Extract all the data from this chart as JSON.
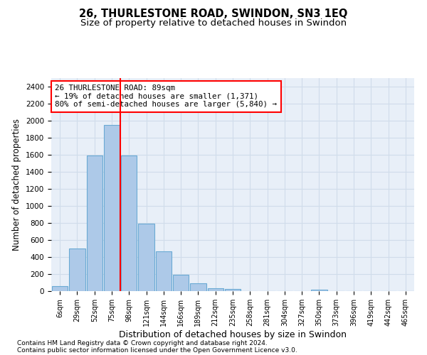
{
  "title": "26, THURLESTONE ROAD, SWINDON, SN3 1EQ",
  "subtitle": "Size of property relative to detached houses in Swindon",
  "xlabel": "Distribution of detached houses by size in Swindon",
  "ylabel": "Number of detached properties",
  "categories": [
    "6sqm",
    "29sqm",
    "52sqm",
    "75sqm",
    "98sqm",
    "121sqm",
    "144sqm",
    "166sqm",
    "189sqm",
    "212sqm",
    "235sqm",
    "258sqm",
    "281sqm",
    "304sqm",
    "327sqm",
    "350sqm",
    "373sqm",
    "396sqm",
    "419sqm",
    "442sqm",
    "465sqm"
  ],
  "values": [
    55,
    500,
    1590,
    1950,
    1590,
    790,
    470,
    195,
    90,
    35,
    25,
    0,
    0,
    0,
    0,
    20,
    0,
    0,
    0,
    0,
    0
  ],
  "bar_color": "#adc9e8",
  "bar_edge_color": "#6aaad4",
  "grid_color": "#d0dcea",
  "background_color": "#e8eff8",
  "annotation_line1": "26 THURLESTONE ROAD: 89sqm",
  "annotation_line2": "← 19% of detached houses are smaller (1,371)",
  "annotation_line3": "80% of semi-detached houses are larger (5,840) →",
  "red_line_index": 3.5,
  "ylim": [
    0,
    2500
  ],
  "yticks": [
    0,
    200,
    400,
    600,
    800,
    1000,
    1200,
    1400,
    1600,
    1800,
    2000,
    2200,
    2400
  ],
  "footnote1": "Contains HM Land Registry data © Crown copyright and database right 2024.",
  "footnote2": "Contains public sector information licensed under the Open Government Licence v3.0.",
  "title_fontsize": 10.5,
  "subtitle_fontsize": 9.5,
  "ylabel_fontsize": 8.5,
  "xlabel_fontsize": 9
}
